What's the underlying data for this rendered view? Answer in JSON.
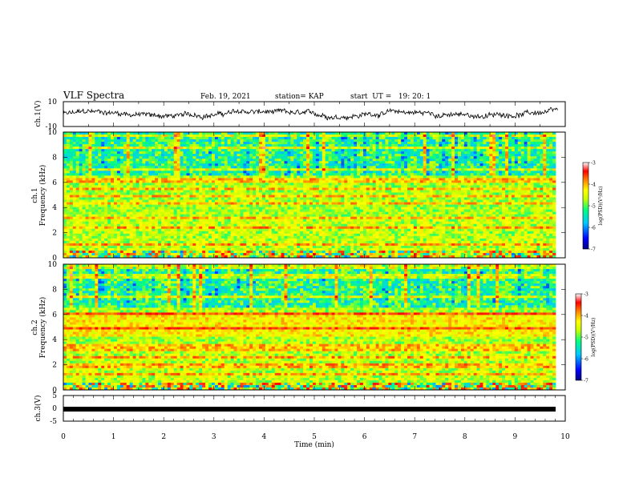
{
  "header": {
    "title": "VLF Spectra",
    "date": "Feb. 19, 2021",
    "station": "station= KAP",
    "start_ut": "start  UT =   19: 20: 1"
  },
  "chart_data": [
    {
      "type": "line",
      "name": "waveform-ch1",
      "ylabel": "ch.1(V)",
      "ylim": [
        -10,
        10
      ],
      "yticks": [
        10,
        -10
      ],
      "xlim": [
        0,
        10
      ]
    },
    {
      "type": "heatmap",
      "name": "spectrogram-ch1",
      "ylabel_line1": "ch.1",
      "ylabel_line2": "Frequency (kHz)",
      "ylim": [
        0,
        10
      ],
      "yticks": [
        0,
        2,
        4,
        6,
        8,
        10
      ],
      "xlim": [
        0,
        10
      ],
      "colorbar": {
        "label": "log(PSD)(V²/Hz)",
        "range": [
          -7,
          -3
        ],
        "ticks": [
          -3,
          -4,
          -5,
          -6,
          -7
        ],
        "colors": [
          "#000080",
          "#0000ff",
          "#00c8ff",
          "#00ff80",
          "#c8ff00",
          "#ffff00",
          "#ff8000",
          "#ff0000",
          "#ffffff"
        ]
      }
    },
    {
      "type": "heatmap",
      "name": "spectrogram-ch2",
      "ylabel_line1": "ch.2",
      "ylabel_line2": "Frequency (kHz)",
      "ylim": [
        0,
        10
      ],
      "yticks": [
        0,
        2,
        4,
        6,
        8,
        10
      ],
      "xlim": [
        0,
        10
      ],
      "colorbar": {
        "label": "log(PSD)(V²/Hz)",
        "range": [
          -7,
          -3
        ],
        "ticks": [
          -3,
          -4,
          -5,
          -6,
          -7
        ],
        "colors": [
          "#000080",
          "#0000ff",
          "#00c8ff",
          "#00ff80",
          "#c8ff00",
          "#ffff00",
          "#ff8000",
          "#ff0000",
          "#ffffff"
        ]
      }
    },
    {
      "type": "line",
      "name": "waveform-ch3",
      "ylabel": "ch.3(V)",
      "ylim": [
        -5,
        5
      ],
      "yticks": [
        5,
        0,
        -5
      ],
      "xlim": [
        0,
        10
      ],
      "xlabel": "Time (min)",
      "xticks": [
        0,
        1,
        2,
        3,
        4,
        5,
        6,
        7,
        8,
        9,
        10
      ]
    }
  ]
}
